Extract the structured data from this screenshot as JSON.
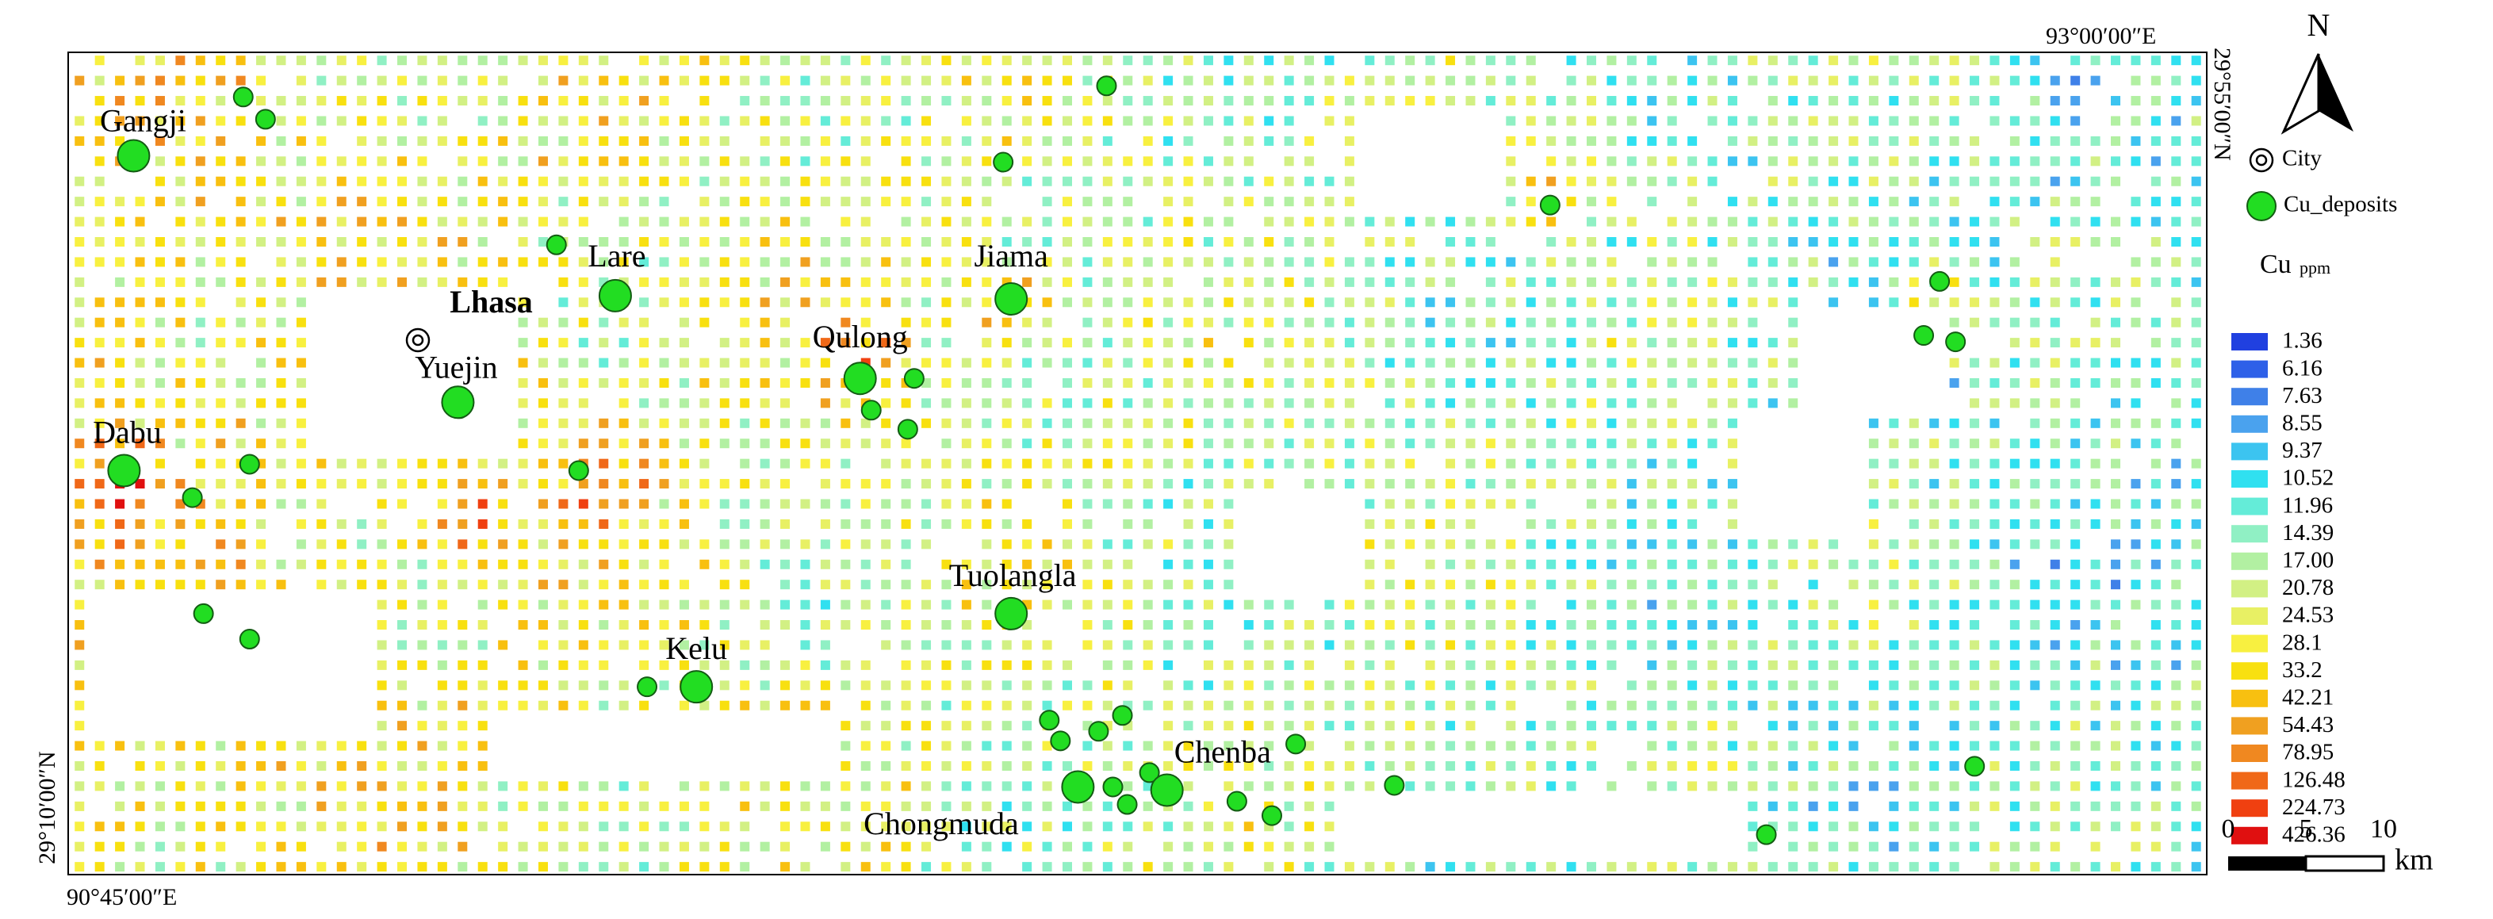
{
  "map": {
    "coords": {
      "top_right": "93°00′00″E",
      "right_top": "29°55′00″N",
      "left_bottom": "29°10′00″N",
      "bottom_left": "90°45′00″E"
    },
    "places": [
      "Gangji",
      "Lare",
      "Jiama",
      "Lhasa",
      "Qulong",
      "Yuejin",
      "Dabu",
      "Tuolangla",
      "Kelu",
      "Chenba",
      "Chongmuda"
    ],
    "north": "N",
    "legend": {
      "city": "City",
      "deposits": "Cu_deposits",
      "title": "Cu",
      "unit": "ppm",
      "classes": [
        {
          "label": 1.36,
          "color": "#2040e0"
        },
        {
          "label": 6.16,
          "color": "#2e60e8"
        },
        {
          "label": 7.63,
          "color": "#3f80e8"
        },
        {
          "label": 8.55,
          "color": "#4aa2ee"
        },
        {
          "label": 9.37,
          "color": "#3cc4f0"
        },
        {
          "label": 10.52,
          "color": "#30e0f0"
        },
        {
          "label": 11.96,
          "color": "#64ecd8"
        },
        {
          "label": 14.39,
          "color": "#90f0c4"
        },
        {
          "label": {
            "value": 17,
            "label": "17.00"
          },
          "color": "#b2f0a2"
        },
        {
          "label": 20.78,
          "color": "#d2f084"
        },
        {
          "label": 24.53,
          "color": "#e8f064"
        },
        {
          "label": 28.1,
          "color": "#f8f040"
        },
        {
          "label": 33.2,
          "color": "#f8e010"
        },
        {
          "label": 42.21,
          "color": "#f8c010"
        },
        {
          "label": 54.43,
          "color": "#f0a020"
        },
        {
          "label": 78.95,
          "color": "#f08820"
        },
        {
          "label": 126.48,
          "color": "#f06818"
        },
        {
          "label": 224.73,
          "color": "#f04010"
        },
        {
          "label": 426.36,
          "color": "#e01010"
        }
      ]
    },
    "scale": {
      "ticks": [
        0,
        5,
        10
      ],
      "unit": "km"
    }
  }
}
